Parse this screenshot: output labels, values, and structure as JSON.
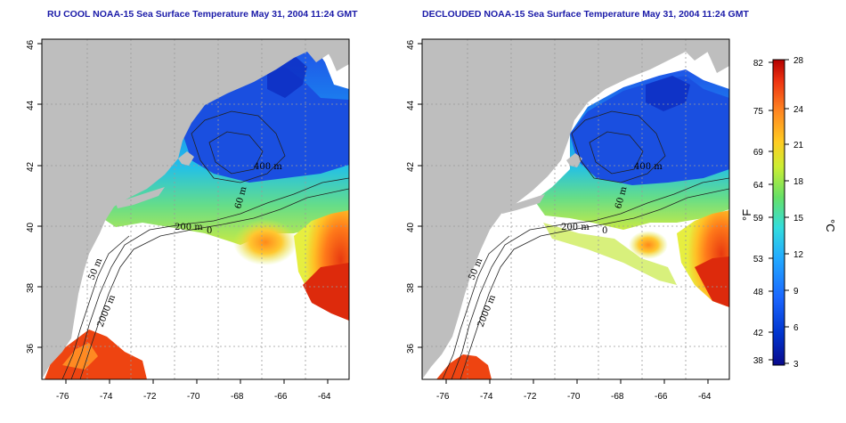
{
  "maps": [
    {
      "title": "RU COOL NOAA-15 Sea Surface Temperature May 31, 2004 11:24 GMT",
      "x_ticks": [
        "-76",
        "-74",
        "-72",
        "-70",
        "-68",
        "-66",
        "-64"
      ],
      "y_ticks": [
        "36",
        "38",
        "40",
        "42",
        "44",
        "46"
      ],
      "contour_labels": [
        "200 m",
        "400 m",
        "2000 m",
        "50 m",
        "60 m",
        "0"
      ]
    },
    {
      "title": "DECLOUDED NOAA-15 Sea Surface Temperature May 31, 2004 11:24 GMT",
      "x_ticks": [
        "-76",
        "-74",
        "-72",
        "-70",
        "-68",
        "-66",
        "-64"
      ],
      "y_ticks": [
        "36",
        "38",
        "40",
        "42",
        "44",
        "46"
      ],
      "contour_labels": [
        "200 m",
        "400 m",
        "2000 m",
        "50 m",
        "60 m",
        "0"
      ]
    }
  ],
  "colorbar": {
    "fahrenheit_label": "°F",
    "celsius_label": "°C",
    "fahrenheit_ticks": [
      "82",
      "75",
      "69",
      "64",
      "59",
      "53",
      "48",
      "42",
      "38"
    ],
    "celsius_ticks": [
      "28",
      "24",
      "21",
      "18",
      "15",
      "12",
      "9",
      "6",
      "3"
    ],
    "colors": [
      "#0a0a8c",
      "#0033cc",
      "#1a66ff",
      "#22aaff",
      "#33dddd",
      "#66e066",
      "#ccee33",
      "#ffcc22",
      "#ff8822",
      "#ee3311",
      "#b30000"
    ]
  },
  "colors": {
    "land": "#bebebe",
    "water_mask": "#ffffff",
    "title": "#1a1aa8",
    "grid": "#9a9a9a"
  }
}
